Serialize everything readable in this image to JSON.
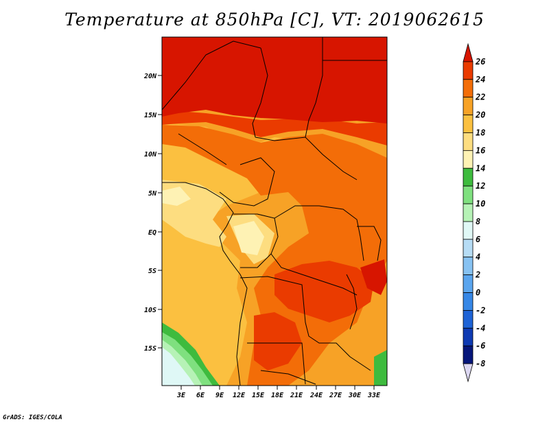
{
  "title": "Temperature at 850hPa [C], VT: 2019062615",
  "credit": "GrADS: IGES/COLA",
  "map": {
    "lat_labels": [
      "20N",
      "15N",
      "10N",
      "5N",
      "EQ",
      "5S",
      "10S",
      "15S"
    ],
    "lon_labels": [
      "3E",
      "6E",
      "9E",
      "12E",
      "15E",
      "18E",
      "21E",
      "24E",
      "27E",
      "30E",
      "33E"
    ],
    "colors": {
      "c26": "#d71500",
      "c24": "#ea3b00",
      "c22": "#f36d08",
      "c20": "#f7a226",
      "c18": "#fbc040",
      "c16": "#fddd80",
      "c14": "#fef2b4",
      "c12": "#3ebb3e",
      "c10": "#7fe07f",
      "c8": "#b6f2b6",
      "c6": "#dff8f6"
    }
  },
  "colorbar": {
    "labels": [
      "26",
      "24",
      "22",
      "20",
      "18",
      "16",
      "14",
      "12",
      "10",
      "8",
      "6",
      "4",
      "2",
      "0",
      "-2",
      "-4",
      "-6",
      "-8"
    ],
    "colors": [
      "#d71500",
      "#ea3b00",
      "#f36d08",
      "#f7a226",
      "#fbc040",
      "#fddd80",
      "#fef2b4",
      "#3ebb3e",
      "#7fe07f",
      "#b6f2b6",
      "#e0f8f6",
      "#b6dcf5",
      "#87c2f2",
      "#5aa5ee",
      "#3687e6",
      "#1e63d6",
      "#0e3ab2",
      "#06167a",
      "#ddd8f2"
    ]
  }
}
